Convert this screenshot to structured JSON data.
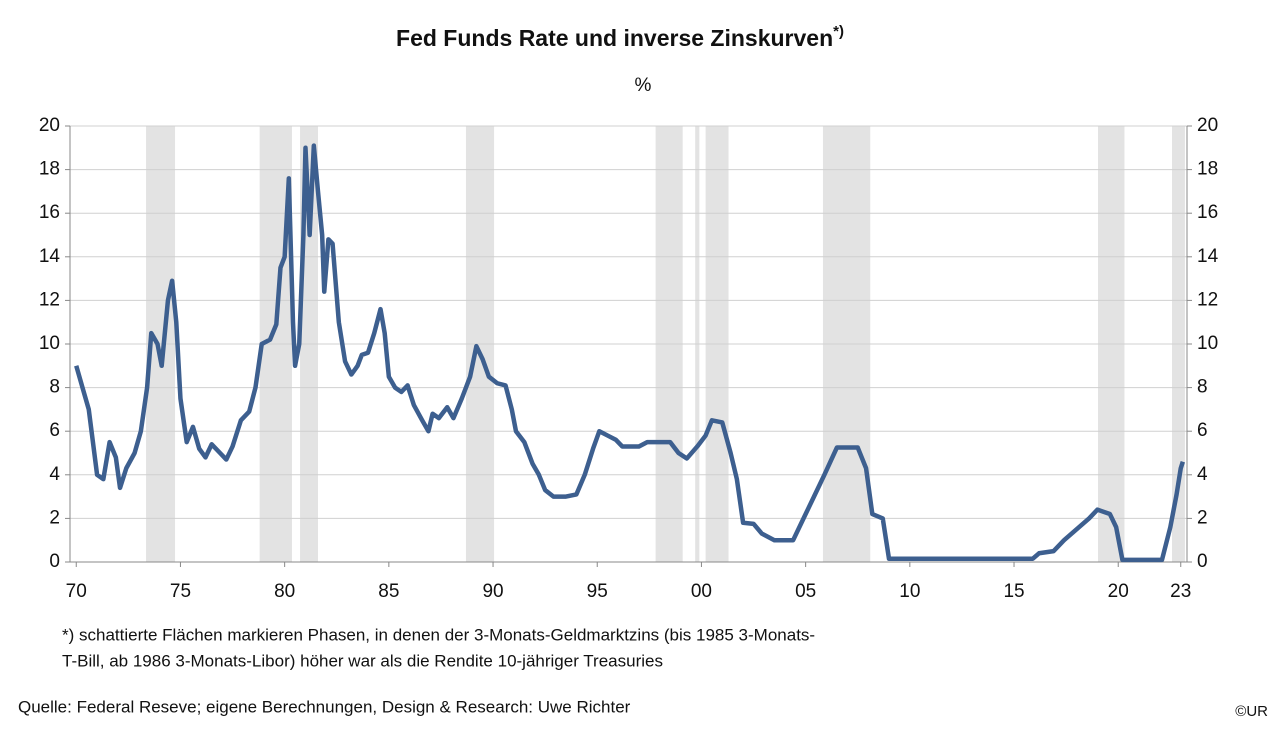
{
  "chart_data": {
    "type": "line",
    "title": "Fed Funds Rate und inverse Zinskurven",
    "title_superscript": "*)",
    "subtitle": "%",
    "footnote_line1": "*) schattierte Flächen markieren Phasen, in denen der 3-Monats-Geldmarktzins (bis 1985 3-Monats-",
    "footnote_line2": "T-Bill, ab 1986 3-Monats-Libor) höher war als die Rendite 10-jähriger Treasuries",
    "source": "Quelle:  Federal Reseve; eigene Berechnungen, Design & Research: Uwe Richter",
    "copyright": "©UR",
    "xlim": [
      1969.7,
      2023.3
    ],
    "xticks": [
      {
        "value": 1970,
        "label": "70"
      },
      {
        "value": 1975,
        "label": "75"
      },
      {
        "value": 1980,
        "label": "80"
      },
      {
        "value": 1985,
        "label": "85"
      },
      {
        "value": 1990,
        "label": "90"
      },
      {
        "value": 1995,
        "label": "95"
      },
      {
        "value": 2000,
        "label": "00"
      },
      {
        "value": 2005,
        "label": "05"
      },
      {
        "value": 2010,
        "label": "10"
      },
      {
        "value": 2015,
        "label": "15"
      },
      {
        "value": 2020,
        "label": "20"
      },
      {
        "value": 2023,
        "label": "23"
      }
    ],
    "ylim": [
      0,
      20
    ],
    "yticks": [
      0,
      2,
      4,
      6,
      8,
      10,
      12,
      14,
      16,
      18,
      20
    ],
    "grid": true,
    "shade_color": "#e3e3e3",
    "shaded_periods": [
      [
        1973.35,
        1974.74
      ],
      [
        1978.8,
        1980.35
      ],
      [
        1980.74,
        1981.6
      ],
      [
        1988.7,
        1990.05
      ],
      [
        1997.8,
        1999.1
      ],
      [
        1999.7,
        1999.9
      ],
      [
        2000.2,
        2001.3
      ],
      [
        2005.83,
        2008.1
      ],
      [
        2019.03,
        2020.3
      ],
      [
        2022.58,
        2023.2
      ]
    ],
    "x": [
      1970.0,
      1970.3,
      1970.6,
      1971.0,
      1971.3,
      1971.6,
      1971.9,
      1972.1,
      1972.4,
      1972.8,
      1973.1,
      1973.4,
      1973.6,
      1973.9,
      1974.1,
      1974.4,
      1974.6,
      1974.8,
      1975.0,
      1975.3,
      1975.6,
      1975.9,
      1976.2,
      1976.5,
      1976.9,
      1977.2,
      1977.5,
      1977.9,
      1978.3,
      1978.6,
      1978.9,
      1979.3,
      1979.6,
      1979.8,
      1980.0,
      1980.2,
      1980.4,
      1980.5,
      1980.7,
      1980.9,
      1981.0,
      1981.2,
      1981.4,
      1981.6,
      1981.8,
      1981.9,
      1982.1,
      1982.3,
      1982.6,
      1982.9,
      1983.2,
      1983.5,
      1983.7,
      1984.0,
      1984.3,
      1984.6,
      1984.8,
      1985.0,
      1985.3,
      1985.6,
      1985.9,
      1986.2,
      1986.6,
      1986.9,
      1987.1,
      1987.4,
      1987.8,
      1988.1,
      1988.5,
      1988.9,
      1989.2,
      1989.5,
      1989.8,
      1990.2,
      1990.6,
      1990.9,
      1991.1,
      1991.5,
      1991.9,
      1992.2,
      1992.5,
      1992.9,
      1993.5,
      1994.0,
      1994.4,
      1994.8,
      1995.1,
      1995.5,
      1995.9,
      1996.2,
      1997.0,
      1997.4,
      1998.5,
      1998.9,
      1999.3,
      1999.8,
      2000.2,
      2000.5,
      2001.0,
      2001.4,
      2001.7,
      2002.0,
      2002.5,
      2002.9,
      2003.5,
      2004.4,
      2004.9,
      2005.4,
      2005.9,
      2006.5,
      2007.5,
      2007.9,
      2008.2,
      2008.7,
      2009.0,
      2015.9,
      2016.2,
      2016.9,
      2017.4,
      2018.0,
      2018.6,
      2019.0,
      2019.6,
      2019.9,
      2020.2,
      2022.1,
      2022.5,
      2022.8,
      2023.0,
      2023.1
    ],
    "series": [
      {
        "name": "Fed Funds Rate",
        "color": "#3d5f8f",
        "values": [
          9.0,
          8.0,
          7.0,
          4.0,
          3.8,
          5.5,
          4.8,
          3.4,
          4.3,
          5.0,
          6.0,
          8.0,
          10.5,
          10.0,
          9.0,
          12.0,
          12.9,
          11.0,
          7.5,
          5.5,
          6.2,
          5.2,
          4.8,
          5.4,
          5.0,
          4.7,
          5.3,
          6.5,
          6.9,
          8.0,
          10.0,
          10.2,
          10.9,
          13.5,
          14.0,
          17.6,
          11.0,
          9.0,
          10.0,
          15.0,
          19.0,
          15.0,
          19.1,
          17.0,
          15.0,
          12.4,
          14.8,
          14.6,
          11.0,
          9.2,
          8.6,
          9.0,
          9.5,
          9.6,
          10.5,
          11.6,
          10.5,
          8.5,
          8.0,
          7.8,
          8.1,
          7.2,
          6.5,
          6.0,
          6.8,
          6.6,
          7.1,
          6.6,
          7.5,
          8.5,
          9.9,
          9.3,
          8.5,
          8.2,
          8.1,
          7.0,
          6.0,
          5.5,
          4.5,
          4.0,
          3.3,
          3.0,
          3.0,
          3.1,
          4.0,
          5.2,
          6.0,
          5.8,
          5.6,
          5.3,
          5.3,
          5.5,
          5.5,
          5.0,
          4.75,
          5.3,
          5.8,
          6.5,
          6.4,
          5.0,
          3.8,
          1.8,
          1.75,
          1.3,
          1.0,
          1.0,
          2.0,
          3.0,
          4.0,
          5.25,
          5.25,
          4.3,
          2.2,
          2.0,
          0.15,
          0.15,
          0.4,
          0.5,
          1.0,
          1.5,
          2.0,
          2.4,
          2.2,
          1.6,
          0.1,
          0.1,
          1.6,
          3.1,
          4.3,
          4.6
        ]
      }
    ]
  }
}
